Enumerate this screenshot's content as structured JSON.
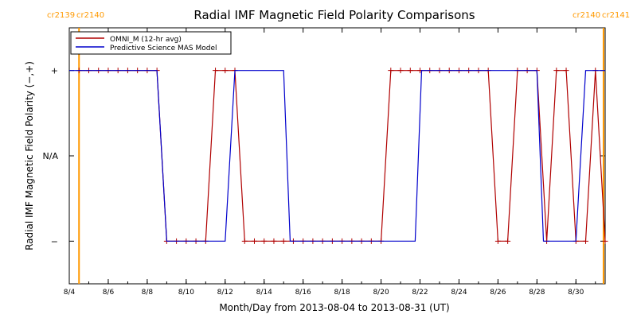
{
  "chart_data": {
    "type": "line",
    "title": "Radial IMF Magnetic Field Polarity Comparisons",
    "xlabel": "Month/Day from 2013-08-04 to 2013-08-31 (UT)",
    "ylabel": "Radial IMF Magnetic Field Polarity (−,+)",
    "xlim": [
      "2013-08-04T00:00",
      "2013-08-31T12:00"
    ],
    "x_ticks": [
      "8/4",
      "8/6",
      "8/8",
      "8/10",
      "8/12",
      "8/14",
      "8/16",
      "8/18",
      "8/20",
      "8/22",
      "8/24",
      "8/26",
      "8/28",
      "8/30"
    ],
    "y_categories": [
      "−",
      "N/A",
      "+"
    ],
    "y_values": [
      -1,
      0,
      1
    ],
    "ylim": [
      -1.5,
      1.5
    ],
    "legend_position": "top-left",
    "carrington_markers": [
      {
        "left_label": "cr2139",
        "right_label": "cr2140",
        "x": "2013-08-04T12:00",
        "color": "#ff9900"
      },
      {
        "left_label": "cr2140",
        "right_label": "cr2141",
        "x": "2013-08-31T10:00",
        "color": "#ff9900"
      }
    ],
    "series": [
      {
        "name": "OMNI_M (12-hr avg)",
        "color": "#b00000",
        "marker": "+",
        "x": [
          "2013-08-04T12:00",
          "2013-08-05T00:00",
          "2013-08-05T12:00",
          "2013-08-06T00:00",
          "2013-08-06T12:00",
          "2013-08-07T00:00",
          "2013-08-07T12:00",
          "2013-08-08T00:00",
          "2013-08-08T12:00",
          "2013-08-09T00:00",
          "2013-08-09T12:00",
          "2013-08-10T00:00",
          "2013-08-10T12:00",
          "2013-08-11T00:00",
          "2013-08-11T12:00",
          "2013-08-12T00:00",
          "2013-08-12T12:00",
          "2013-08-13T00:00",
          "2013-08-13T12:00",
          "2013-08-14T00:00",
          "2013-08-14T12:00",
          "2013-08-15T00:00",
          "2013-08-15T12:00",
          "2013-08-16T00:00",
          "2013-08-16T12:00",
          "2013-08-17T00:00",
          "2013-08-17T12:00",
          "2013-08-18T00:00",
          "2013-08-18T12:00",
          "2013-08-19T00:00",
          "2013-08-19T12:00",
          "2013-08-20T00:00",
          "2013-08-20T12:00",
          "2013-08-21T00:00",
          "2013-08-21T12:00",
          "2013-08-22T00:00",
          "2013-08-22T12:00",
          "2013-08-23T00:00",
          "2013-08-23T12:00",
          "2013-08-24T00:00",
          "2013-08-24T12:00",
          "2013-08-25T00:00",
          "2013-08-25T12:00",
          "2013-08-26T00:00",
          "2013-08-26T12:00",
          "2013-08-27T00:00",
          "2013-08-27T12:00",
          "2013-08-28T00:00",
          "2013-08-28T12:00",
          "2013-08-29T00:00",
          "2013-08-29T12:00",
          "2013-08-30T00:00",
          "2013-08-30T12:00",
          "2013-08-31T00:00",
          "2013-08-31T12:00"
        ],
        "y": [
          1,
          1,
          1,
          1,
          1,
          1,
          1,
          1,
          1,
          -1,
          -1,
          -1,
          -1,
          -1,
          1,
          1,
          1,
          -1,
          -1,
          -1,
          -1,
          -1,
          -1,
          -1,
          -1,
          -1,
          -1,
          -1,
          -1,
          -1,
          -1,
          -1,
          1,
          1,
          1,
          1,
          1,
          1,
          1,
          1,
          1,
          1,
          1,
          -1,
          -1,
          1,
          1,
          1,
          -1,
          1,
          1,
          -1,
          -1,
          1,
          -1
        ]
      },
      {
        "name": "Predictive Science MAS Model",
        "color": "#0000cc",
        "x": [
          "2013-08-04T00:00",
          "2013-08-08T12:00",
          "2013-08-09T00:00",
          "2013-08-12T00:00",
          "2013-08-12T12:00",
          "2013-08-15T00:00",
          "2013-08-15T08:00",
          "2013-08-21T18:00",
          "2013-08-22T02:00",
          "2013-08-28T00:00",
          "2013-08-28T08:00",
          "2013-08-30T00:00",
          "2013-08-30T12:00",
          "2013-08-31T12:00"
        ],
        "y": [
          1,
          1,
          -1,
          -1,
          1,
          1,
          -1,
          -1,
          1,
          1,
          -1,
          -1,
          1,
          1
        ]
      }
    ]
  }
}
